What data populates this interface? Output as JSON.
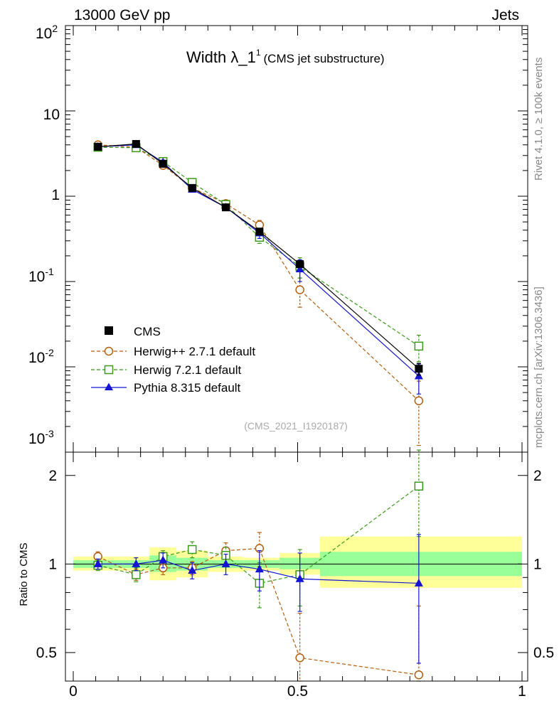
{
  "header": {
    "energy": "13000 GeV pp",
    "process": "Jets",
    "title_main": "Width λ_1",
    "title_sup": "1",
    "title_sub": "(CMS jet substructure)",
    "rivet": "Rivet 4.1.0, ≥ 100k events",
    "mcplots": "mcplots.cern.ch [arXiv:1306.3436]",
    "analysis": "(CMS_2021_I1920187)"
  },
  "colors": {
    "data": "#000000",
    "herwigpp": "#b35e0f",
    "herwig7": "#3c9a1a",
    "pythia": "#1414d2",
    "band_yellow": "#ffff99",
    "band_green": "#99ff99",
    "side_text": "#888888"
  },
  "chart_data": [
    {
      "type": "scatter",
      "panel": "main",
      "yscale": "log",
      "xlim": [
        0,
        1
      ],
      "ylim": [
        0.001,
        100
      ],
      "ytick_labels": [
        "10",
        "1"
      ],
      "ytick_exp_labels": [
        {
          "base": "10",
          "exp": "2"
        },
        {
          "base": "10",
          "exp": "-1"
        },
        {
          "base": "10",
          "exp": "-2"
        },
        {
          "base": "10",
          "exp": "-3"
        }
      ],
      "x": [
        0.055,
        0.14,
        0.2,
        0.265,
        0.34,
        0.415,
        0.505,
        0.77
      ],
      "x_bins": [
        [
          0.0,
          0.11
        ],
        [
          0.11,
          0.17
        ],
        [
          0.17,
          0.23
        ],
        [
          0.23,
          0.3
        ],
        [
          0.3,
          0.38
        ],
        [
          0.38,
          0.46
        ],
        [
          0.46,
          0.55
        ],
        [
          0.55,
          1.0
        ]
      ],
      "series": [
        {
          "name": "CMS",
          "key": "data",
          "marker": "square-filled",
          "values": [
            3.8,
            4.1,
            2.4,
            1.25,
            0.74,
            0.385,
            0.16,
            0.0095
          ],
          "errors": [
            0.15,
            0.25,
            0.15,
            0.06,
            0.04,
            0.02,
            0.01,
            0.0015
          ]
        },
        {
          "name": "Herwig++ 2.7.1 default",
          "key": "herwigpp",
          "marker": "circle-open",
          "dashed": true,
          "values": [
            4.0,
            3.75,
            2.3,
            1.25,
            0.82,
            0.46,
            0.08,
            0.004
          ],
          "errors": [
            0.15,
            0.15,
            0.1,
            0.05,
            0.05,
            0.06,
            0.03,
            0.0028
          ]
        },
        {
          "name": "Herwig 7.2.1 default",
          "key": "herwig7",
          "marker": "square-open",
          "dashed": true,
          "values": [
            3.75,
            3.7,
            2.55,
            1.45,
            0.8,
            0.33,
            0.15,
            0.0175
          ],
          "errors": [
            0.15,
            0.2,
            0.15,
            0.08,
            0.05,
            0.05,
            0.04,
            0.006
          ]
        },
        {
          "name": "Pythia 8.315 default",
          "key": "pythia",
          "marker": "triangle-filled",
          "dashed": false,
          "values": [
            3.8,
            4.0,
            2.5,
            1.2,
            0.74,
            0.37,
            0.14,
            0.0078
          ],
          "errors": [
            0.15,
            0.25,
            0.15,
            0.07,
            0.05,
            0.05,
            0.04,
            0.003
          ]
        }
      ],
      "legend": "middle-left"
    },
    {
      "type": "scatter",
      "panel": "ratio",
      "ylabel": "Ratio to CMS",
      "yscale": "log",
      "xlim": [
        0,
        1
      ],
      "ylim": [
        0.4,
        2.4
      ],
      "ytick_labels": [
        "2",
        "1",
        "0.5"
      ],
      "xtick_labels": [
        "0",
        "0.5",
        "1"
      ],
      "bands": {
        "yellow": [
          [
            0.95,
            1.06
          ],
          [
            0.95,
            1.06
          ],
          [
            0.88,
            1.14
          ],
          [
            0.9,
            1.11
          ],
          [
            0.94,
            1.06
          ],
          [
            0.95,
            1.05
          ],
          [
            0.92,
            1.09
          ],
          [
            0.83,
            1.24
          ]
        ],
        "green": [
          [
            0.97,
            1.03
          ],
          [
            0.97,
            1.03
          ],
          [
            0.94,
            1.07
          ],
          [
            0.95,
            1.05
          ],
          [
            0.97,
            1.03
          ],
          [
            0.97,
            1.03
          ],
          [
            0.96,
            1.05
          ],
          [
            0.91,
            1.1
          ]
        ]
      },
      "series": [
        {
          "name": "Herwig++ 2.7.1 default",
          "key": "herwigpp",
          "values": [
            1.06,
            0.92,
            0.97,
            0.97,
            1.11,
            1.13,
            0.48,
            0.42
          ],
          "errors": [
            0.04,
            0.04,
            0.05,
            0.05,
            0.07,
            0.15,
            0.2,
            0.3
          ]
        },
        {
          "name": "Herwig 7.2.1 default",
          "key": "herwig7",
          "values": [
            0.99,
            0.92,
            1.06,
            1.12,
            1.07,
            0.86,
            0.92,
            1.84
          ],
          "errors": [
            0.04,
            0.05,
            0.05,
            0.07,
            0.07,
            0.15,
            0.2,
            0.6
          ]
        },
        {
          "name": "Pythia 8.315 default",
          "key": "pythia",
          "values": [
            1.0,
            1.0,
            1.03,
            0.95,
            1.0,
            0.96,
            0.89,
            0.86
          ],
          "errors": [
            0.04,
            0.05,
            0.06,
            0.06,
            0.08,
            0.15,
            0.2,
            0.4
          ]
        }
      ]
    }
  ]
}
